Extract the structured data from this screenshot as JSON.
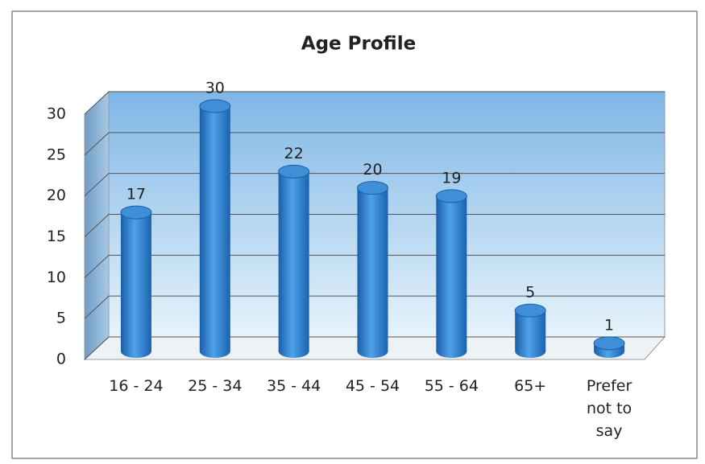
{
  "chart_data": {
    "type": "bar",
    "title": "Age Profile",
    "categories": [
      "16 - 24",
      "25 - 34",
      "35 - 44",
      "45 - 54",
      "55 - 64",
      "65+",
      "Prefer not to say"
    ],
    "values": [
      17,
      30,
      22,
      20,
      19,
      5,
      1
    ],
    "color": "#2a7fd0",
    "ylim": [
      0,
      30
    ],
    "yticks": [
      0,
      5,
      10,
      15,
      20,
      25,
      30
    ],
    "grid": true
  }
}
